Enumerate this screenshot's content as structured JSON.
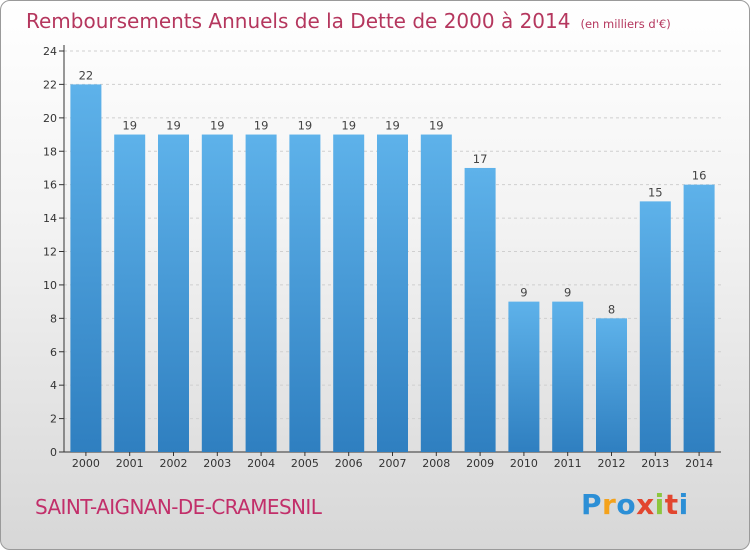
{
  "header": {
    "title": "Remboursements Annuels de la Dette de 2000 à 2014",
    "unit": "(en milliers d'€)"
  },
  "footer": {
    "commune": "SAINT-AIGNAN-DE-CRAMESNIL",
    "brand": "Proxiti",
    "brand_colors": [
      "#2c8fd6",
      "#f4a21b",
      "#2c8fd6",
      "#e2462f",
      "#8cc63e",
      "#e2462f",
      "#2c8fd6"
    ]
  },
  "colors": {
    "bar_top": "#5eb2ea",
    "bar_bottom": "#2f7fc0",
    "axis": "#333333",
    "grid": "#cfcfcf",
    "title": "#b5375e"
  },
  "chart_data": {
    "type": "bar",
    "title": "Remboursements Annuels de la Dette de 2000 à 2014",
    "subtitle": "(en milliers d'€)",
    "categories": [
      "2000",
      "2001",
      "2002",
      "2003",
      "2004",
      "2005",
      "2006",
      "2007",
      "2008",
      "2009",
      "2010",
      "2011",
      "2012",
      "2013",
      "2014"
    ],
    "values": [
      22,
      19,
      19,
      19,
      19,
      19,
      19,
      19,
      19,
      17,
      9,
      9,
      8,
      15,
      16
    ],
    "xlabel": "",
    "ylabel": "",
    "ylim": [
      0,
      24
    ],
    "yticks": [
      0,
      2,
      4,
      6,
      8,
      10,
      12,
      14,
      16,
      18,
      20,
      22,
      24
    ],
    "grid": true,
    "data_labels": true
  }
}
